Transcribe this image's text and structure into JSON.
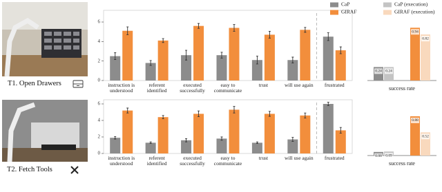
{
  "tasks": [
    {
      "label": "T1. Open Drawers"
    },
    {
      "label": "T2. Fetch Tools"
    }
  ],
  "chart_data": [
    {
      "type": "bar",
      "categories": [
        "instruction is understood",
        "referent identified",
        "executed successfully",
        "easy to communicate",
        "trust",
        "will use again",
        "frustrated"
      ],
      "series": [
        {
          "color": "#8c8c8c",
          "values": [
            2.5,
            1.8,
            2.6,
            2.6,
            2.1,
            2.1,
            4.5
          ],
          "errors": [
            0.35,
            0.25,
            0.5,
            0.3,
            0.4,
            0.3,
            0.4
          ]
        },
        {
          "color": "#f28e3c",
          "values": [
            5.1,
            4.1,
            5.6,
            5.4,
            4.7,
            5.2,
            3.1
          ],
          "errors": [
            0.4,
            0.2,
            0.25,
            0.35,
            0.35,
            0.25,
            0.35
          ]
        }
      ],
      "ylim": [
        0,
        7.2
      ],
      "yticks": [
        0,
        2,
        4,
        6
      ]
    },
    {
      "type": "success",
      "xlabel": "success rate",
      "series": [
        {
          "name": "CaP",
          "color": "#8c8c8c",
          "values": [
            0.24
          ]
        },
        {
          "name": "CaP (execution)",
          "color": "#c4c4c4",
          "values": [
            0.24
          ]
        },
        {
          "name": "GIRAF",
          "color": "#f28e3c",
          "values": [
            0.94
          ]
        },
        {
          "name": "GIRAF (execution)",
          "color": "#f9d9bd",
          "values": [
            0.82
          ]
        }
      ],
      "ylim": [
        0,
        1.25
      ]
    },
    {
      "type": "bar",
      "categories": [
        "instruction is understood",
        "referent identified",
        "executed successfully",
        "easy to communicate",
        "trust",
        "will use again",
        "frustrated"
      ],
      "series": [
        {
          "color": "#8c8c8c",
          "values": [
            1.9,
            1.3,
            1.6,
            1.8,
            1.3,
            1.7,
            6.0
          ],
          "errors": [
            0.15,
            0.1,
            0.2,
            0.2,
            0.1,
            0.25,
            0.2
          ]
        },
        {
          "color": "#f28e3c",
          "values": [
            5.2,
            4.4,
            4.8,
            5.3,
            4.8,
            4.6,
            2.8
          ],
          "errors": [
            0.3,
            0.2,
            0.35,
            0.4,
            0.3,
            0.3,
            0.35
          ]
        }
      ],
      "ylim": [
        0,
        6.5
      ],
      "yticks": [
        0,
        2,
        4,
        6
      ]
    },
    {
      "type": "success",
      "xlabel": "success rate",
      "series": [
        {
          "color": "#8c8c8c",
          "values": [
            0.08
          ]
        },
        {
          "color": "#c4c4c4",
          "values": [
            0.09
          ]
        },
        {
          "color": "#f28e3c",
          "values": [
            0.88
          ]
        },
        {
          "color": "#f9d9bd",
          "values": [
            0.52
          ]
        }
      ],
      "ylim": [
        0,
        1.25
      ]
    }
  ]
}
